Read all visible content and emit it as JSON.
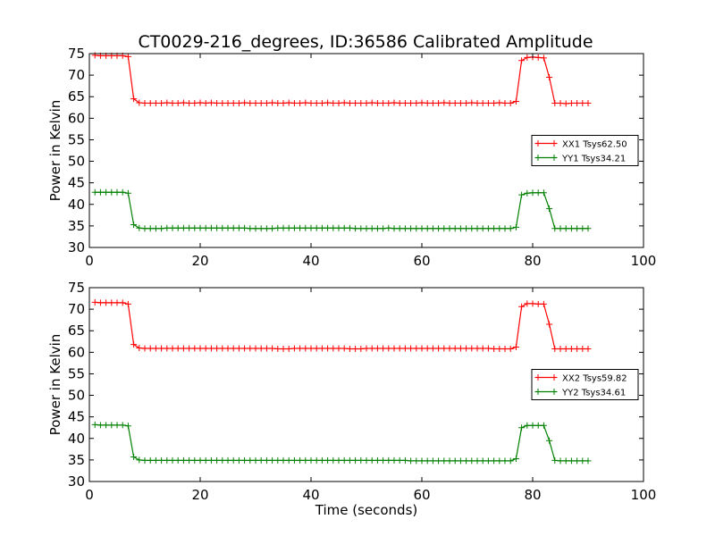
{
  "figure": {
    "title": "CT0029-216_degrees, ID:36586 Calibrated Amplitude"
  },
  "chart_data": [
    {
      "type": "line",
      "title": "CT0029-216_degrees, ID:36586 Calibrated Amplitude",
      "xlabel": "",
      "ylabel": "Power in Kelvin",
      "xlim": [
        0,
        100
      ],
      "ylim": [
        30,
        75
      ],
      "xticks": [
        "0",
        "20",
        "40",
        "60",
        "80",
        "100"
      ],
      "yticks": [
        "30",
        "35",
        "40",
        "45",
        "50",
        "55",
        "60",
        "65",
        "70",
        "75"
      ],
      "grid": false,
      "legend": "center-right",
      "series": [
        {
          "name": "XX1 Tsys62.50",
          "color": "#ff0000",
          "marker": "+",
          "x": [
            1,
            2,
            3,
            4,
            5,
            6,
            7,
            8,
            9,
            10,
            11,
            12,
            13,
            14,
            15,
            16,
            17,
            18,
            19,
            20,
            21,
            22,
            23,
            24,
            25,
            26,
            27,
            28,
            29,
            30,
            31,
            32,
            33,
            34,
            35,
            36,
            37,
            38,
            39,
            40,
            41,
            42,
            43,
            44,
            45,
            46,
            47,
            48,
            49,
            50,
            51,
            52,
            53,
            54,
            55,
            56,
            57,
            58,
            59,
            60,
            61,
            62,
            63,
            64,
            65,
            66,
            67,
            68,
            69,
            70,
            71,
            72,
            73,
            74,
            75,
            76,
            77,
            78,
            79,
            80,
            81,
            82,
            83,
            84,
            85,
            86,
            87,
            88,
            89,
            90
          ],
          "y": [
            74.6,
            74.5,
            74.5,
            74.5,
            74.5,
            74.5,
            74.3,
            64.5,
            63.6,
            63.5,
            63.5,
            63.5,
            63.5,
            63.6,
            63.5,
            63.5,
            63.6,
            63.5,
            63.5,
            63.6,
            63.5,
            63.6,
            63.5,
            63.5,
            63.5,
            63.5,
            63.5,
            63.6,
            63.5,
            63.5,
            63.5,
            63.5,
            63.6,
            63.5,
            63.5,
            63.6,
            63.5,
            63.5,
            63.6,
            63.5,
            63.5,
            63.5,
            63.6,
            63.5,
            63.5,
            63.6,
            63.5,
            63.5,
            63.5,
            63.5,
            63.6,
            63.5,
            63.5,
            63.5,
            63.6,
            63.5,
            63.5,
            63.5,
            63.5,
            63.6,
            63.5,
            63.5,
            63.5,
            63.6,
            63.5,
            63.5,
            63.5,
            63.5,
            63.6,
            63.5,
            63.5,
            63.5,
            63.5,
            63.6,
            63.5,
            63.5,
            63.9,
            73.4,
            74.1,
            74.2,
            74.1,
            74.0,
            69.5,
            63.5,
            63.5,
            63.4,
            63.5,
            63.5,
            63.5,
            63.5
          ]
        },
        {
          "name": "YY1 Tsys34.21",
          "color": "#008000",
          "marker": "+",
          "x": [
            1,
            2,
            3,
            4,
            5,
            6,
            7,
            8,
            9,
            10,
            11,
            12,
            13,
            14,
            15,
            16,
            17,
            18,
            19,
            20,
            21,
            22,
            23,
            24,
            25,
            26,
            27,
            28,
            29,
            30,
            31,
            32,
            33,
            34,
            35,
            36,
            37,
            38,
            39,
            40,
            41,
            42,
            43,
            44,
            45,
            46,
            47,
            48,
            49,
            50,
            51,
            52,
            53,
            54,
            55,
            56,
            57,
            58,
            59,
            60,
            61,
            62,
            63,
            64,
            65,
            66,
            67,
            68,
            69,
            70,
            71,
            72,
            73,
            74,
            75,
            76,
            77,
            78,
            79,
            80,
            81,
            82,
            83,
            84,
            85,
            86,
            87,
            88,
            89,
            90
          ],
          "y": [
            42.8,
            42.8,
            42.8,
            42.8,
            42.8,
            42.8,
            42.6,
            35.3,
            34.5,
            34.4,
            34.4,
            34.4,
            34.4,
            34.5,
            34.5,
            34.5,
            34.5,
            34.5,
            34.5,
            34.5,
            34.5,
            34.5,
            34.5,
            34.5,
            34.5,
            34.5,
            34.5,
            34.5,
            34.4,
            34.4,
            34.4,
            34.4,
            34.4,
            34.5,
            34.5,
            34.5,
            34.5,
            34.5,
            34.5,
            34.5,
            34.5,
            34.5,
            34.5,
            34.5,
            34.5,
            34.5,
            34.5,
            34.4,
            34.4,
            34.4,
            34.4,
            34.4,
            34.4,
            34.5,
            34.4,
            34.4,
            34.4,
            34.4,
            34.4,
            34.4,
            34.4,
            34.4,
            34.4,
            34.4,
            34.4,
            34.4,
            34.4,
            34.4,
            34.4,
            34.4,
            34.4,
            34.4,
            34.4,
            34.4,
            34.4,
            34.4,
            34.7,
            42.2,
            42.6,
            42.7,
            42.7,
            42.7,
            39.0,
            34.4,
            34.4,
            34.4,
            34.4,
            34.4,
            34.4,
            34.4
          ]
        }
      ]
    },
    {
      "type": "line",
      "title": "",
      "xlabel": "Time (seconds)",
      "ylabel": "Power in Kelvin",
      "xlim": [
        0,
        100
      ],
      "ylim": [
        30,
        75
      ],
      "xticks": [
        "0",
        "20",
        "40",
        "60",
        "80",
        "100"
      ],
      "yticks": [
        "30",
        "35",
        "40",
        "45",
        "50",
        "55",
        "60",
        "65",
        "70",
        "75"
      ],
      "grid": false,
      "legend": "center-right",
      "series": [
        {
          "name": "XX2 Tsys59.82",
          "color": "#ff0000",
          "marker": "+",
          "x": [
            1,
            2,
            3,
            4,
            5,
            6,
            7,
            8,
            9,
            10,
            11,
            12,
            13,
            14,
            15,
            16,
            17,
            18,
            19,
            20,
            21,
            22,
            23,
            24,
            25,
            26,
            27,
            28,
            29,
            30,
            31,
            32,
            33,
            34,
            35,
            36,
            37,
            38,
            39,
            40,
            41,
            42,
            43,
            44,
            45,
            46,
            47,
            48,
            49,
            50,
            51,
            52,
            53,
            54,
            55,
            56,
            57,
            58,
            59,
            60,
            61,
            62,
            63,
            64,
            65,
            66,
            67,
            68,
            69,
            70,
            71,
            72,
            73,
            74,
            75,
            76,
            77,
            78,
            79,
            80,
            81,
            82,
            83,
            84,
            85,
            86,
            87,
            88,
            89,
            90
          ],
          "y": [
            71.6,
            71.5,
            71.5,
            71.5,
            71.5,
            71.5,
            71.2,
            61.8,
            61.0,
            60.9,
            60.9,
            60.9,
            60.9,
            60.9,
            60.9,
            60.9,
            60.9,
            60.9,
            60.9,
            60.9,
            60.9,
            60.9,
            60.9,
            60.9,
            60.9,
            60.9,
            60.9,
            60.9,
            60.9,
            60.9,
            60.9,
            60.9,
            60.9,
            60.8,
            60.8,
            60.8,
            60.9,
            60.9,
            60.9,
            60.9,
            60.9,
            60.9,
            60.9,
            60.9,
            60.9,
            60.9,
            60.8,
            60.8,
            60.8,
            60.9,
            60.9,
            60.9,
            60.9,
            60.9,
            60.9,
            60.9,
            60.9,
            60.9,
            60.9,
            60.9,
            60.9,
            60.9,
            60.9,
            60.9,
            60.9,
            60.9,
            60.9,
            60.9,
            60.9,
            60.9,
            60.9,
            60.9,
            60.8,
            60.8,
            60.8,
            60.8,
            61.2,
            70.6,
            71.3,
            71.3,
            71.2,
            71.2,
            66.5,
            60.8,
            60.8,
            60.8,
            60.8,
            60.8,
            60.8,
            60.8
          ]
        },
        {
          "name": "YY2 Tsys34.61",
          "color": "#008000",
          "marker": "+",
          "x": [
            1,
            2,
            3,
            4,
            5,
            6,
            7,
            8,
            9,
            10,
            11,
            12,
            13,
            14,
            15,
            16,
            17,
            18,
            19,
            20,
            21,
            22,
            23,
            24,
            25,
            26,
            27,
            28,
            29,
            30,
            31,
            32,
            33,
            34,
            35,
            36,
            37,
            38,
            39,
            40,
            41,
            42,
            43,
            44,
            45,
            46,
            47,
            48,
            49,
            50,
            51,
            52,
            53,
            54,
            55,
            56,
            57,
            58,
            59,
            60,
            61,
            62,
            63,
            64,
            65,
            66,
            67,
            68,
            69,
            70,
            71,
            72,
            73,
            74,
            75,
            76,
            77,
            78,
            79,
            80,
            81,
            82,
            83,
            84,
            85,
            86,
            87,
            88,
            89,
            90
          ],
          "y": [
            43.2,
            43.1,
            43.1,
            43.1,
            43.1,
            43.1,
            42.9,
            35.7,
            35.0,
            34.9,
            34.9,
            34.9,
            34.9,
            34.9,
            34.9,
            34.9,
            34.9,
            34.9,
            34.9,
            34.9,
            34.9,
            34.9,
            34.9,
            34.9,
            34.9,
            34.9,
            34.9,
            34.9,
            34.9,
            34.9,
            34.9,
            34.9,
            34.9,
            34.9,
            34.9,
            34.9,
            34.9,
            34.9,
            34.9,
            34.9,
            34.9,
            34.9,
            34.9,
            34.9,
            34.9,
            34.9,
            34.9,
            34.9,
            34.9,
            34.9,
            34.9,
            34.9,
            34.9,
            34.9,
            34.9,
            34.9,
            34.9,
            34.8,
            34.8,
            34.8,
            34.8,
            34.8,
            34.8,
            34.8,
            34.8,
            34.8,
            34.8,
            34.8,
            34.8,
            34.8,
            34.8,
            34.8,
            34.8,
            34.8,
            34.8,
            34.8,
            35.3,
            42.5,
            43.0,
            43.0,
            43.0,
            43.0,
            39.5,
            34.9,
            34.8,
            34.8,
            34.8,
            34.8,
            34.8,
            34.8
          ]
        }
      ]
    }
  ]
}
